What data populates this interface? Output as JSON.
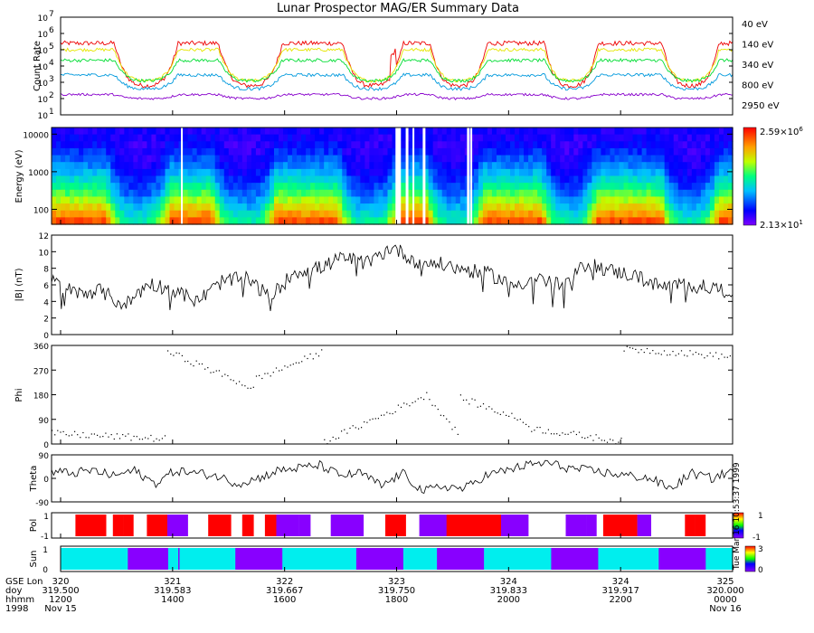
{
  "title": "Lunar Prospector MAG/ER Summary Data",
  "colors": {
    "ch40": "#ee0000",
    "ch140": "#e6e600",
    "ch340": "#00dd33",
    "ch800": "#0099dd",
    "ch2950": "#8800cc",
    "pol_pos": "#ff0000",
    "pol_neg": "#8800ff",
    "sun_lit": "#00eeee",
    "sun_dark": "#8800ff"
  },
  "chart_data": [
    {
      "type": "line",
      "name": "count-rate",
      "ylabel": "Count Rate",
      "scale": "log",
      "ylim_exp": [
        1,
        7
      ],
      "ytick_labels": [
        "10",
        "10",
        "10",
        "10",
        "10",
        "10",
        "10"
      ],
      "ytick_sup": [
        "1",
        "2",
        "3",
        "4",
        "5",
        "6",
        "7"
      ],
      "series": [
        {
          "name": "40 eV",
          "base": 5.4,
          "dip": 2.6,
          "noise": 0.14
        },
        {
          "name": "140 eV",
          "base": 5.0,
          "dip": 1.9,
          "noise": 0.1
        },
        {
          "name": "340 eV",
          "base": 4.35,
          "dip": 1.25,
          "noise": 0.1
        },
        {
          "name": "800 eV",
          "base": 3.45,
          "dip": 0.85,
          "noise": 0.1
        },
        {
          "name": "2950 eV",
          "base": 2.25,
          "dip": 0.25,
          "noise": 0.07
        }
      ]
    },
    {
      "type": "heatmap",
      "name": "energy-spectrogram",
      "ylabel": "Energy (eV)",
      "ytick_labels": [
        "10000",
        "1000",
        "100"
      ],
      "ytick_values": [
        10000,
        1000,
        100
      ],
      "colorbar_max": "2.59×10",
      "colorbar_max_exp": "6",
      "colorbar_min": "2.13×10",
      "colorbar_min_exp": "1"
    },
    {
      "type": "line",
      "name": "field-magnitude",
      "ylabel": "|B| (nT)",
      "ylim": [
        0,
        12
      ],
      "ytick_labels": [
        "0",
        "2",
        "4",
        "6",
        "8",
        "10",
        "12"
      ],
      "trend": [
        6.5,
        5.0,
        5.3,
        3.5,
        6.2,
        5.4,
        4.0,
        6.4,
        6.8,
        4.5,
        7.6,
        8.0,
        9.3,
        8.6,
        10.6,
        8.8,
        8.5,
        7.8,
        7.3,
        6.0,
        6.8,
        5.8,
        8.6,
        7.7,
        7.1,
        5.8,
        6.0,
        5.7,
        5.2
      ]
    },
    {
      "type": "scatter",
      "name": "phi",
      "ylabel": "Phi",
      "ylim": [
        0,
        360
      ],
      "ytick_labels": [
        "0",
        "90",
        "180",
        "270",
        "360"
      ],
      "segments": [
        {
          "t0": 0.0,
          "t1": 0.17,
          "v0": 40,
          "v1": 20
        },
        {
          "t0": 0.17,
          "t1": 0.3,
          "v0": 340,
          "v1": 200
        },
        {
          "t0": 0.3,
          "t1": 0.4,
          "v0": 240,
          "v1": 340
        },
        {
          "t0": 0.4,
          "t1": 0.55,
          "v0": 10,
          "v1": 180
        },
        {
          "t0": 0.55,
          "t1": 0.6,
          "v0": 180,
          "v1": 30
        },
        {
          "t0": 0.6,
          "t1": 0.7,
          "v0": 170,
          "v1": 80
        },
        {
          "t0": 0.7,
          "t1": 0.84,
          "v0": 60,
          "v1": 10
        },
        {
          "t0": 0.84,
          "t1": 1.0,
          "v0": 350,
          "v1": 320
        }
      ]
    },
    {
      "type": "line",
      "name": "theta",
      "ylabel": "Theta",
      "ylim": [
        -90,
        90
      ],
      "ytick_labels": [
        "90",
        "0",
        "-90"
      ],
      "trend": [
        25,
        20,
        30,
        10,
        30,
        -20,
        30,
        20,
        10,
        -20,
        0,
        30,
        40,
        50,
        10,
        20,
        -30,
        20,
        -50,
        -30,
        -40,
        10,
        30,
        50,
        60,
        40,
        30,
        20,
        10,
        0,
        -40,
        20,
        0,
        30
      ]
    },
    {
      "type": "table",
      "name": "polarity",
      "ylabel": "Pol",
      "ytick_labels": [
        "1",
        "-1"
      ],
      "colorbar_labels": [
        "1",
        "-1"
      ],
      "side_text": "Tue Mar 16 10:53:37 1999",
      "intervals": [
        [
          0.0,
          0.02,
          0
        ],
        [
          0.02,
          0.08,
          1
        ],
        [
          0.08,
          0.09,
          0
        ],
        [
          0.09,
          0.12,
          1
        ],
        [
          0.12,
          0.14,
          0
        ],
        [
          0.14,
          0.17,
          1
        ],
        [
          0.17,
          0.2,
          -1
        ],
        [
          0.2,
          0.23,
          0
        ],
        [
          0.23,
          0.33,
          1
        ],
        [
          0.33,
          0.38,
          -1
        ],
        [
          0.38,
          0.41,
          0
        ],
        [
          0.41,
          0.49,
          -1
        ],
        [
          0.49,
          0.52,
          1
        ],
        [
          0.52,
          0.54,
          0
        ],
        [
          0.54,
          0.58,
          -1
        ],
        [
          0.58,
          0.66,
          1
        ],
        [
          0.66,
          0.7,
          -1
        ],
        [
          0.7,
          0.74,
          0
        ],
        [
          0.74,
          0.8,
          -1
        ],
        [
          0.8,
          0.81,
          0
        ],
        [
          0.81,
          0.86,
          1
        ],
        [
          0.86,
          0.88,
          -1
        ],
        [
          0.88,
          0.93,
          0
        ],
        [
          0.93,
          0.99,
          1
        ],
        [
          0.99,
          1.0,
          0
        ]
      ]
    },
    {
      "type": "table",
      "name": "sun",
      "ylabel": "Sun",
      "ytick_labels": [
        "1",
        "0"
      ],
      "colorbar_labels": [
        "3",
        "0"
      ],
      "intervals": [
        [
          0.0,
          0.1,
          1
        ],
        [
          0.1,
          0.16,
          0
        ],
        [
          0.16,
          0.26,
          1
        ],
        [
          0.26,
          0.33,
          0
        ],
        [
          0.33,
          0.44,
          1
        ],
        [
          0.44,
          0.51,
          0
        ],
        [
          0.51,
          0.56,
          1
        ],
        [
          0.56,
          0.63,
          0
        ],
        [
          0.63,
          0.73,
          1
        ],
        [
          0.73,
          0.8,
          0
        ],
        [
          0.8,
          0.89,
          1
        ],
        [
          0.89,
          0.96,
          0
        ],
        [
          0.96,
          1.0,
          1
        ]
      ]
    }
  ],
  "legend": [
    "40 eV",
    "140 eV",
    "340 eV",
    "800 eV",
    "2950 eV"
  ],
  "time_axis": {
    "row_labels": [
      "GSE Lon",
      "doy",
      "hhmm",
      "1998"
    ],
    "ticks": [
      {
        "lon": "320",
        "doy": "319.500",
        "hhmm": "1200",
        "date": "Nov 15"
      },
      {
        "lon": "321",
        "doy": "319.583",
        "hhmm": "1400",
        "date": ""
      },
      {
        "lon": "322",
        "doy": "319.667",
        "hhmm": "1600",
        "date": ""
      },
      {
        "lon": "323",
        "doy": "319.750",
        "hhmm": "1800",
        "date": ""
      },
      {
        "lon": "324",
        "doy": "319.833",
        "hhmm": "2000",
        "date": ""
      },
      {
        "lon": "324",
        "doy": "319.917",
        "hhmm": "2200",
        "date": ""
      },
      {
        "lon": "325",
        "doy": "320.000",
        "hhmm": "0000",
        "date": "Nov 16"
      }
    ]
  }
}
